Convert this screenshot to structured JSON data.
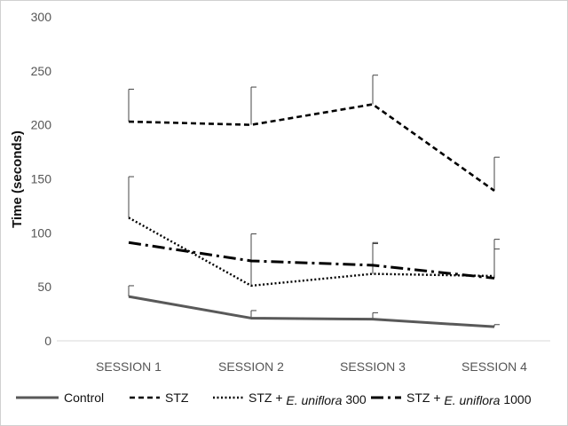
{
  "chart_data": {
    "type": "line",
    "title": "",
    "xlabel": "",
    "ylabel": "Time (seconds)",
    "categories": [
      "SESSION 1",
      "SESSION 2",
      "SESSION 3",
      "SESSION 4"
    ],
    "ylim": [
      0,
      300
    ],
    "yticks": [
      0,
      50,
      100,
      150,
      200,
      250,
      300
    ],
    "grid": false,
    "legend_position": "bottom",
    "series": [
      {
        "name": "Control",
        "values": [
          41,
          21,
          20,
          13
        ],
        "errors": [
          10,
          7,
          6,
          2
        ],
        "color": "#595959",
        "dash": "solid"
      },
      {
        "name": "STZ",
        "values": [
          203,
          200,
          219,
          139
        ],
        "errors": [
          30,
          35,
          27,
          31
        ],
        "color": "#000000",
        "dash": "dashed"
      },
      {
        "name": "STZ + E. uniflora 300",
        "legend_parts": [
          "STZ +",
          "E. uniflora",
          "300"
        ],
        "values": [
          114,
          51,
          62,
          60
        ],
        "errors": [
          38,
          48,
          29,
          25
        ],
        "color": "#000000",
        "dash": "dotted"
      },
      {
        "name": "STZ + E. uniflora 1000",
        "legend_parts": [
          "STZ +",
          "E. uniflora",
          "1000"
        ],
        "values": [
          91,
          74,
          70,
          58
        ],
        "errors": [
          0,
          0,
          20,
          36
        ],
        "color": "#000000",
        "dash": "dashdot"
      }
    ]
  }
}
